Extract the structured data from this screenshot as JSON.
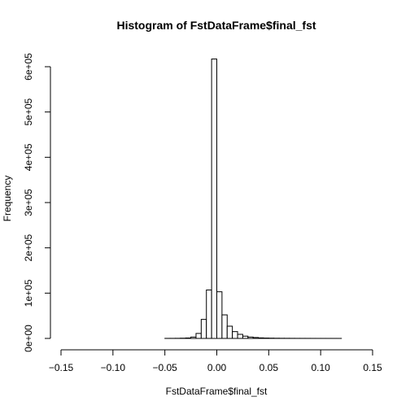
{
  "chart_data": {
    "type": "bar",
    "title": "Histogram of FstDataFrame$final_fst",
    "xlabel": "FstDataFrame$final_fst",
    "ylabel": "Frequency",
    "xlim": [
      -0.15,
      0.15
    ],
    "ylim": [
      0,
      600000
    ],
    "x_ticks": [
      -0.15,
      -0.1,
      -0.05,
      0.0,
      0.05,
      0.1,
      0.15
    ],
    "x_tick_labels": [
      "−0.15",
      "−0.10",
      "−0.05",
      "0.00",
      "0.05",
      "0.10",
      "0.15"
    ],
    "y_ticks": [
      0,
      100000,
      200000,
      300000,
      400000,
      500000,
      600000
    ],
    "y_tick_labels": [
      "0e+00",
      "1e+05",
      "2e+05",
      "3e+05",
      "4e+05",
      "5e+05",
      "6e+05"
    ],
    "bin_width": 0.005,
    "bins": [
      {
        "x0": -0.05,
        "x1": -0.045,
        "count": 100
      },
      {
        "x0": -0.045,
        "x1": -0.04,
        "count": 150
      },
      {
        "x0": -0.04,
        "x1": -0.035,
        "count": 250
      },
      {
        "x0": -0.035,
        "x1": -0.03,
        "count": 500
      },
      {
        "x0": -0.03,
        "x1": -0.025,
        "count": 1000
      },
      {
        "x0": -0.025,
        "x1": -0.02,
        "count": 3000
      },
      {
        "x0": -0.02,
        "x1": -0.015,
        "count": 11000
      },
      {
        "x0": -0.015,
        "x1": -0.01,
        "count": 42000
      },
      {
        "x0": -0.01,
        "x1": -0.005,
        "count": 107000
      },
      {
        "x0": -0.005,
        "x1": 0.0,
        "count": 617000
      },
      {
        "x0": 0.0,
        "x1": 0.005,
        "count": 103000
      },
      {
        "x0": 0.005,
        "x1": 0.01,
        "count": 52000
      },
      {
        "x0": 0.01,
        "x1": 0.015,
        "count": 27000
      },
      {
        "x0": 0.015,
        "x1": 0.02,
        "count": 15000
      },
      {
        "x0": 0.02,
        "x1": 0.025,
        "count": 9000
      },
      {
        "x0": 0.025,
        "x1": 0.03,
        "count": 5000
      },
      {
        "x0": 0.03,
        "x1": 0.035,
        "count": 3000
      },
      {
        "x0": 0.035,
        "x1": 0.04,
        "count": 2000
      },
      {
        "x0": 0.04,
        "x1": 0.045,
        "count": 1200
      },
      {
        "x0": 0.045,
        "x1": 0.05,
        "count": 800
      },
      {
        "x0": 0.05,
        "x1": 0.055,
        "count": 600
      },
      {
        "x0": 0.055,
        "x1": 0.06,
        "count": 400
      },
      {
        "x0": 0.06,
        "x1": 0.065,
        "count": 300
      },
      {
        "x0": 0.065,
        "x1": 0.07,
        "count": 250
      },
      {
        "x0": 0.07,
        "x1": 0.075,
        "count": 200
      },
      {
        "x0": 0.075,
        "x1": 0.08,
        "count": 150
      },
      {
        "x0": 0.08,
        "x1": 0.085,
        "count": 120
      },
      {
        "x0": 0.085,
        "x1": 0.09,
        "count": 100
      },
      {
        "x0": 0.09,
        "x1": 0.095,
        "count": 80
      },
      {
        "x0": 0.095,
        "x1": 0.1,
        "count": 60
      },
      {
        "x0": 0.1,
        "x1": 0.105,
        "count": 50
      },
      {
        "x0": 0.105,
        "x1": 0.11,
        "count": 40
      },
      {
        "x0": 0.11,
        "x1": 0.115,
        "count": 30
      },
      {
        "x0": 0.115,
        "x1": 0.12,
        "count": 20
      }
    ],
    "grid": false,
    "legend": "none",
    "bar_fill": "#ffffff",
    "bar_stroke": "#000000"
  }
}
